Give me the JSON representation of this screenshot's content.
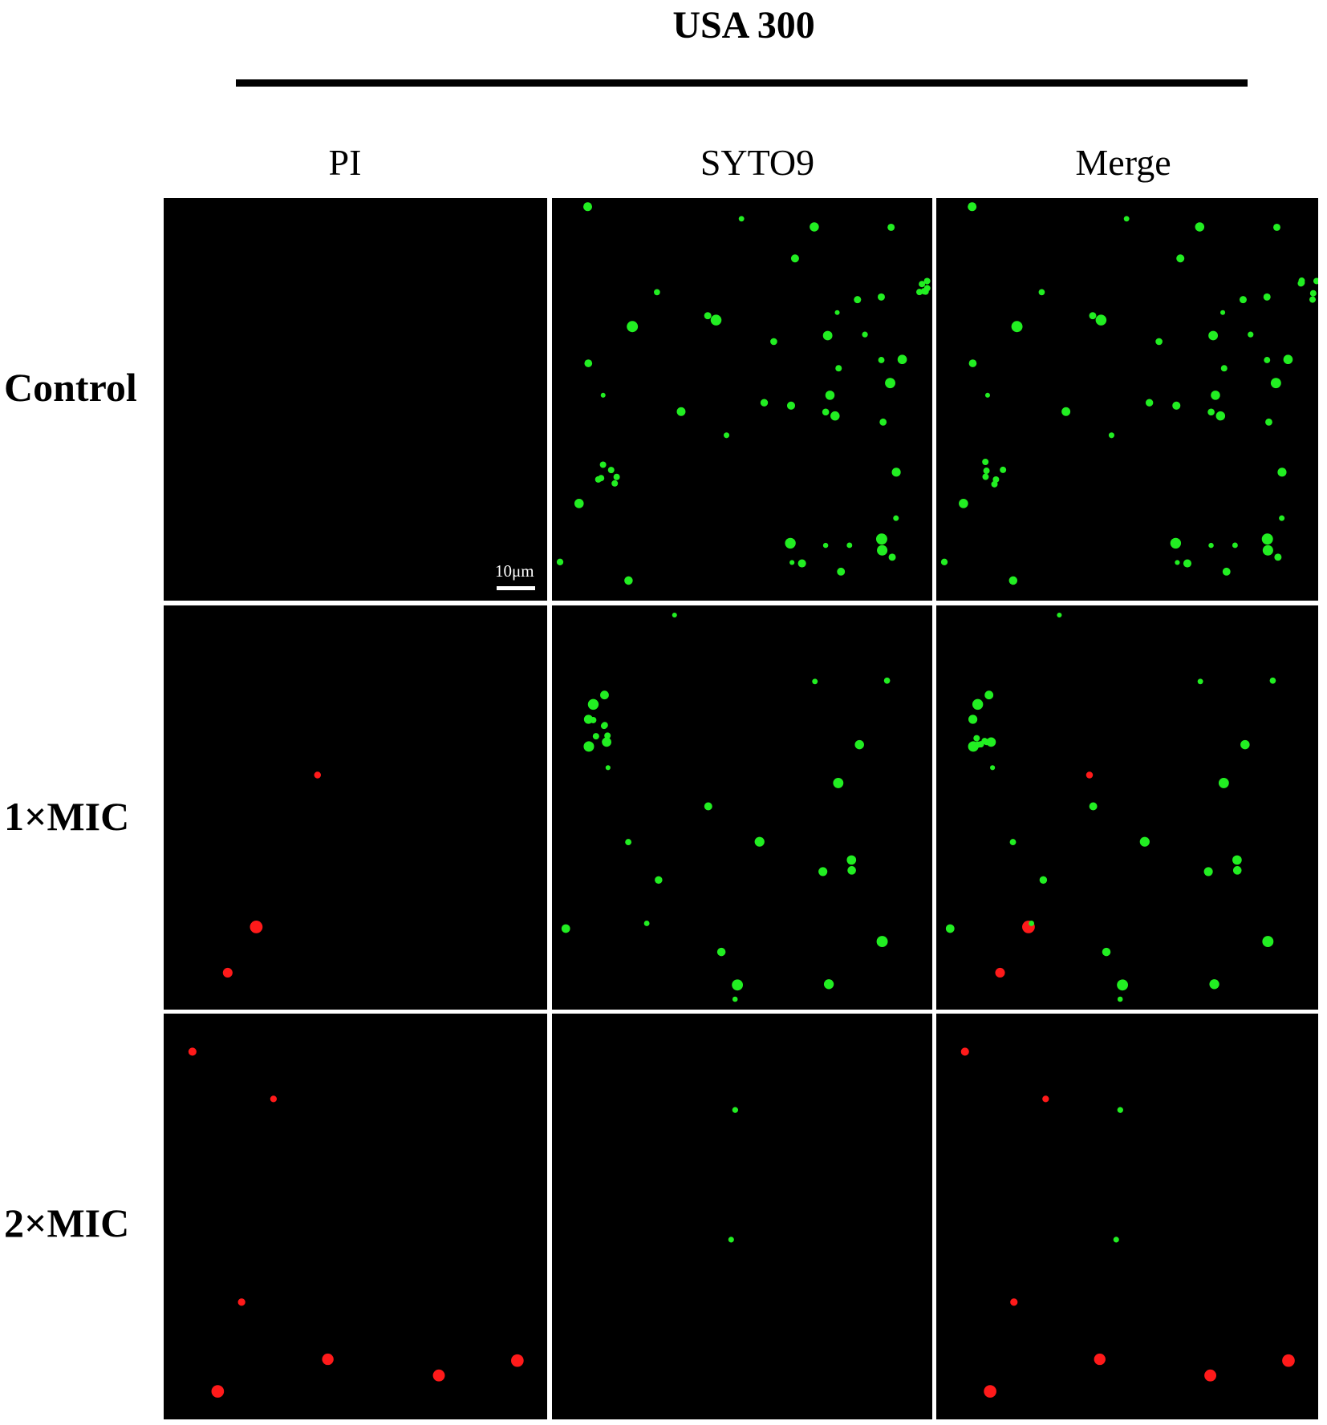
{
  "header": {
    "title": "USA 300"
  },
  "columns": [
    "PI",
    "SYTO9",
    "Merge"
  ],
  "rows": [
    "Control",
    "1×MIC",
    "2×MIC"
  ],
  "scale_bar": "10μm"
}
